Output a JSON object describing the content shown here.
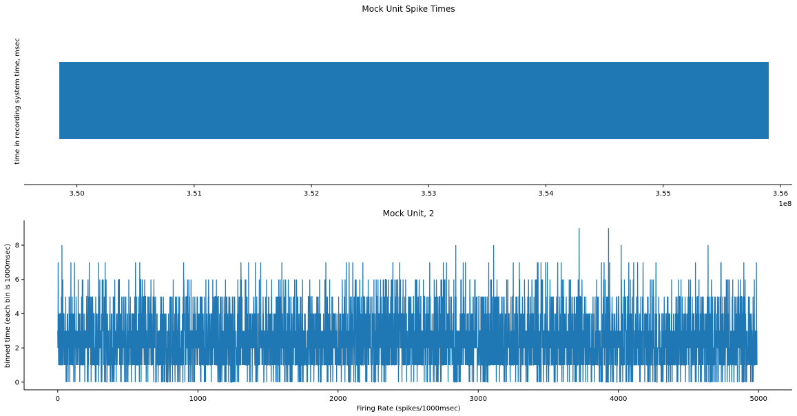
{
  "chart_data": [
    {
      "type": "bar",
      "title": "Mock Unit Spike Times",
      "xlabel": "",
      "ylabel": "time in recording system time, msec",
      "x_range_of_spikes": [
        349850000,
        355900000
      ],
      "xlim": [
        349550000,
        356100000
      ],
      "x_ticks": [
        350000000,
        351000000,
        352000000,
        353000000,
        354000000,
        355000000,
        356000000
      ],
      "x_tick_labels": [
        "3.50",
        "3.51",
        "3.52",
        "3.53",
        "3.54",
        "3.55",
        "3.56"
      ],
      "x_offset_label": "1e8",
      "color": "#1f77b4"
    },
    {
      "type": "line",
      "title": "Mock Unit, 2",
      "xlabel": "Firing Rate (spikes/1000msec)",
      "ylabel": "binned time (each bin is 1000msec)",
      "n_bins": 4990,
      "xlim": [
        -240,
        5240
      ],
      "ylim": [
        -0.45,
        9.45
      ],
      "x_ticks": [
        0,
        1000,
        2000,
        3000,
        4000,
        5000
      ],
      "y_ticks": [
        0,
        2,
        4,
        6,
        8
      ],
      "peaks": [
        {
          "x": 30,
          "y": 8
        },
        {
          "x": 2840,
          "y": 8
        },
        {
          "x": 3110,
          "y": 8
        },
        {
          "x": 3720,
          "y": 9
        },
        {
          "x": 3930,
          "y": 9
        },
        {
          "x": 4020,
          "y": 8
        },
        {
          "x": 4640,
          "y": 8
        }
      ],
      "color": "#1f77b4"
    }
  ]
}
